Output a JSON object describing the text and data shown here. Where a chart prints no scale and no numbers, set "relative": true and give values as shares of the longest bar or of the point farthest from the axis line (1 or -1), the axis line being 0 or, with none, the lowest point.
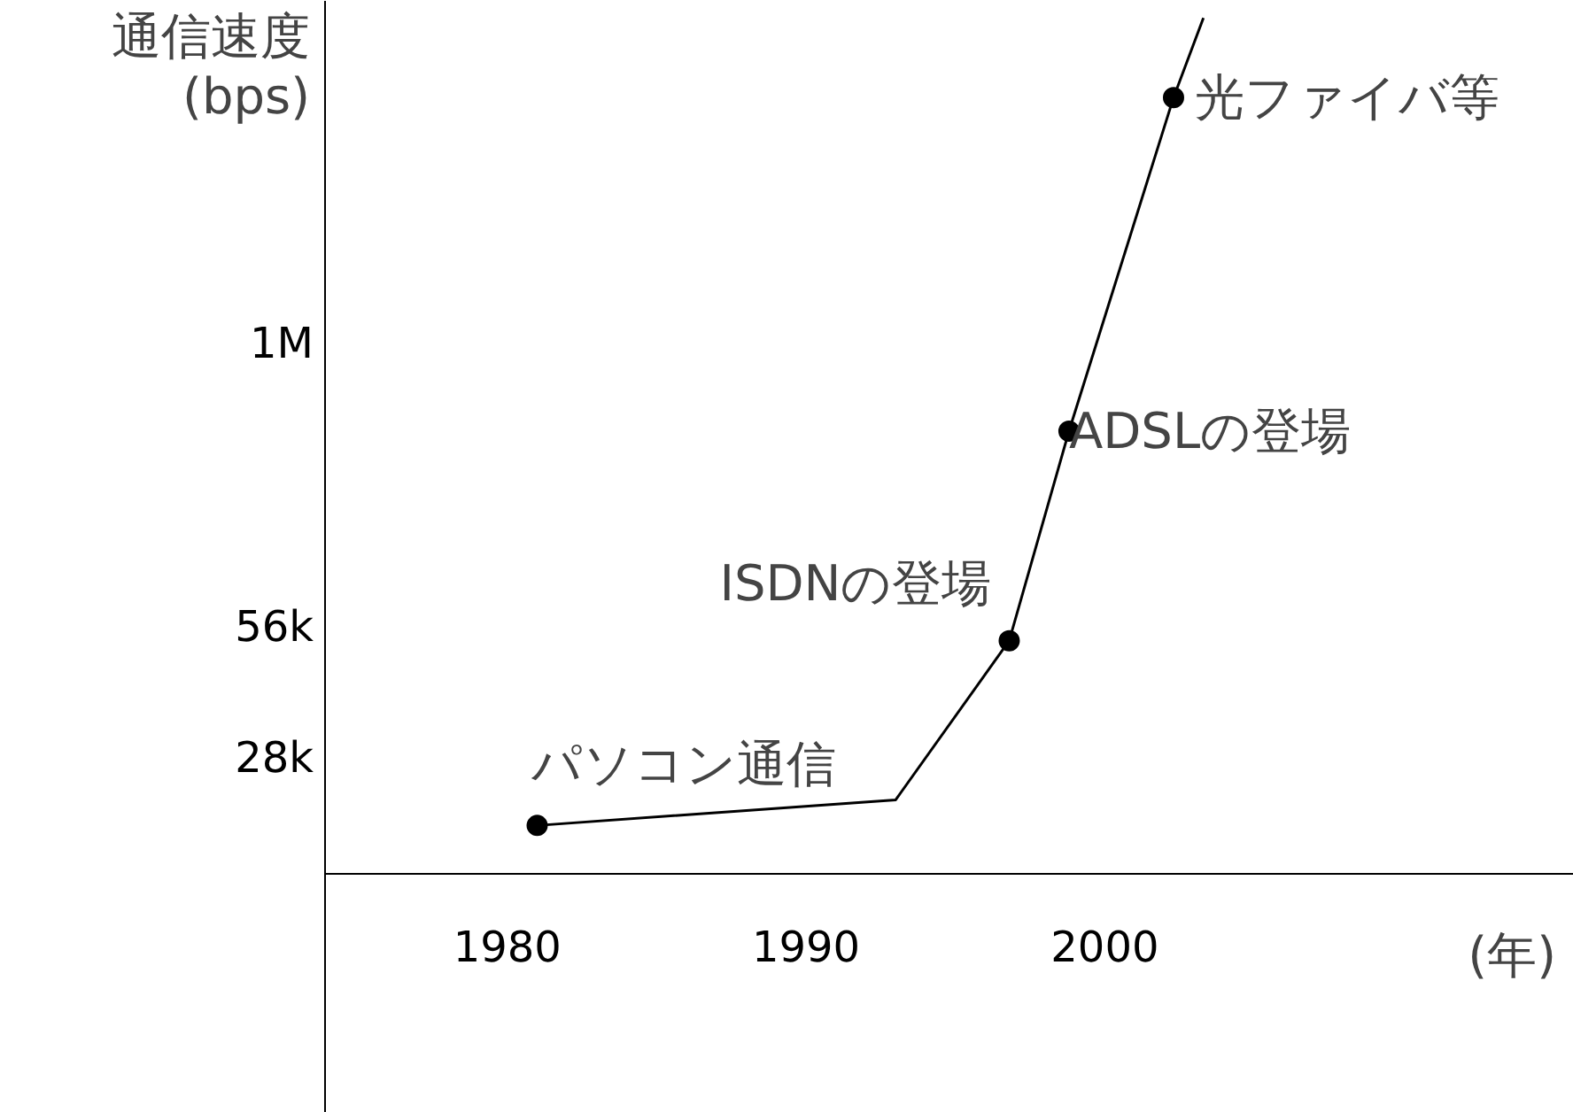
{
  "chart_data": {
    "type": "line",
    "relative": true,
    "ylabel": "通信速度\n(bps)",
    "xlabel": "(年)",
    "xlim": [
      1973.9,
      2015.7
    ],
    "xticks": [
      1980,
      1990,
      2000
    ],
    "series": [
      {
        "color": "#000000",
        "x": [
          1981,
          1993,
          1996.8,
          1998.8,
          2002.3,
          2003.3
        ],
        "values": [
          0.056,
          0.086,
          0.272,
          0.517,
          0.907,
          1
        ]
      },
      {
        "type": "scatter",
        "color": "#000000",
        "marker": "circle",
        "x": [
          1981,
          1996.8,
          1998.8,
          2002.3
        ],
        "values": [
          0.056,
          0.272,
          0.517,
          0.907
        ]
      }
    ],
    "annotations": [
      {
        "text": "パソコン通信",
        "x": 1981,
        "y": 0.056
      },
      {
        "text": "ISDNの登場",
        "x": 1996.8,
        "y": 0.272
      },
      {
        "text": "ADSLの登場",
        "x": 1998.8,
        "y": 0.517
      },
      {
        "text": "光ファイバ等",
        "x": 2002.3,
        "y": 0.907
      },
      "28k",
      "56k",
      "1M"
    ]
  }
}
